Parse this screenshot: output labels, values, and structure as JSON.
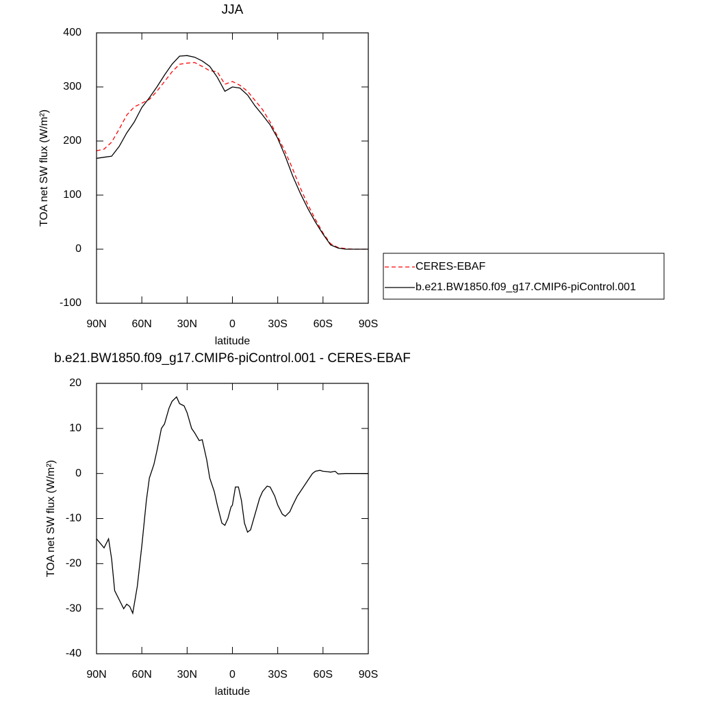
{
  "chart_data": [
    {
      "type": "line",
      "title": "JJA",
      "ylabel": "TOA net SW flux (W/m²)",
      "xlabel": "latitude",
      "xlim": [
        90,
        -90
      ],
      "ylim": [
        -100,
        400
      ],
      "xticks": [
        {
          "value": 90,
          "label": "90N"
        },
        {
          "value": 60,
          "label": "60N"
        },
        {
          "value": 30,
          "label": "30N"
        },
        0,
        {
          "value": -30,
          "label": "30S"
        },
        {
          "value": -60,
          "label": "60S"
        },
        {
          "value": -90,
          "label": "90S"
        }
      ],
      "yticks": [
        -100,
        0,
        100,
        200,
        300,
        400
      ],
      "legend": "right",
      "x": [
        90,
        85,
        80,
        75,
        70,
        65,
        60,
        55,
        50,
        45,
        40,
        35,
        30,
        25,
        20,
        15,
        10,
        5,
        0,
        -5,
        -10,
        -15,
        -20,
        -25,
        -30,
        -35,
        -40,
        -45,
        -50,
        -55,
        -60,
        -65,
        -70,
        -75,
        -80,
        -85,
        -90
      ],
      "series": [
        {
          "name": "CERES-EBAF",
          "color": "#ff0000",
          "dash": true,
          "values": [
            182,
            185,
            198,
            222,
            248,
            263,
            270,
            277,
            292,
            310,
            328,
            342,
            344,
            345,
            338,
            330,
            328,
            305,
            310,
            303,
            292,
            275,
            258,
            235,
            208,
            180,
            148,
            113,
            82,
            55,
            30,
            10,
            3,
            1,
            0,
            0,
            0
          ]
        },
        {
          "name": "b.e21.BW1850.f09_g17.CMIP6-piControl.001",
          "color": "#000000",
          "dash": false,
          "values": [
            168,
            170,
            172,
            190,
            215,
            235,
            262,
            280,
            300,
            322,
            342,
            357,
            358,
            355,
            348,
            338,
            318,
            292,
            300,
            298,
            285,
            265,
            248,
            230,
            205,
            172,
            135,
            103,
            75,
            50,
            28,
            8,
            2,
            0,
            0,
            0,
            0
          ]
        }
      ]
    },
    {
      "type": "line",
      "title": "b.e21.BW1850.f09_g17.CMIP6-piControl.001 - CERES-EBAF",
      "ylabel": "TOA net SW flux (W/m²)",
      "xlabel": "latitude",
      "xlim": [
        90,
        -90
      ],
      "ylim": [
        -40,
        20
      ],
      "xticks": [
        {
          "value": 90,
          "label": "90N"
        },
        {
          "value": 60,
          "label": "60N"
        },
        {
          "value": 30,
          "label": "30N"
        },
        0,
        {
          "value": -30,
          "label": "30S"
        },
        {
          "value": -60,
          "label": "60S"
        },
        {
          "value": -90,
          "label": "90S"
        }
      ],
      "yticks": [
        -40,
        -30,
        -20,
        -10,
        0,
        10,
        20
      ],
      "x": [
        90,
        85,
        82,
        80,
        78,
        75,
        72,
        70,
        68,
        66,
        63,
        60,
        57,
        55,
        52,
        50,
        47,
        45,
        42,
        40,
        37,
        35,
        32,
        30,
        27,
        25,
        22,
        20,
        17,
        15,
        12,
        10,
        7,
        5,
        3,
        1,
        0,
        -2,
        -4,
        -6,
        -8,
        -10,
        -12,
        -15,
        -18,
        -20,
        -23,
        -25,
        -28,
        -30,
        -33,
        -35,
        -38,
        -40,
        -43,
        -45,
        -48,
        -50,
        -53,
        -55,
        -58,
        -60,
        -63,
        -65,
        -68,
        -70,
        -75,
        -80,
        -85,
        -90
      ],
      "series": [
        {
          "color": "#000000",
          "values": [
            -14.5,
            -16.5,
            -14.5,
            -19,
            -26,
            -28,
            -30,
            -29,
            -29.5,
            -31,
            -25,
            -16,
            -6,
            -1,
            2,
            5,
            10,
            11,
            14.5,
            16,
            17,
            15.5,
            15,
            13.5,
            10,
            9,
            7.3,
            7.5,
            3,
            -1,
            -4,
            -7,
            -11,
            -11.5,
            -10,
            -7.5,
            -7,
            -3,
            -3,
            -6,
            -11,
            -13,
            -12.5,
            -9,
            -5.5,
            -4,
            -2.8,
            -3,
            -5,
            -7,
            -9,
            -9.5,
            -8.5,
            -7,
            -5,
            -4,
            -2.5,
            -1.5,
            0,
            0.5,
            0.7,
            0.5,
            0.4,
            0.3,
            0.5,
            -0.1,
            0,
            0,
            0,
            0
          ]
        }
      ]
    }
  ]
}
